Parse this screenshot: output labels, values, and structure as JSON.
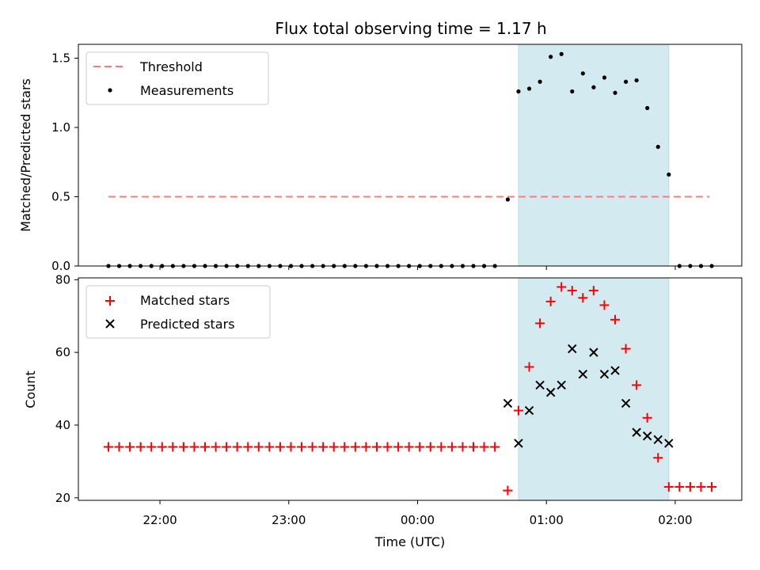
{
  "chart_data": [
    {
      "type": "scatter",
      "title": "Flux total observing time = 1.17 h",
      "xlabel": "",
      "ylabel": "Matched/Predicted stars",
      "ylim": [
        0,
        1.6
      ],
      "yticks": [
        "0.0",
        "0.5",
        "1.0",
        "1.5"
      ],
      "xlim": [
        "21:22",
        "02:31"
      ],
      "legend_position": "top-left",
      "highlight_span": {
        "start": "00:47",
        "end": "01:57",
        "color": "#d3ebf0"
      },
      "threshold": {
        "name": "Threshold",
        "value": 0.5,
        "x_start": "21:36",
        "x_end": "02:16",
        "color": "#f08080"
      },
      "series": [
        {
          "name": "Measurements",
          "marker": "dot",
          "color": "#000000",
          "x": [
            "21:36",
            "21:41",
            "21:46",
            "21:51",
            "21:56",
            "22:01",
            "22:06",
            "22:11",
            "22:16",
            "22:21",
            "22:26",
            "22:31",
            "22:36",
            "22:41",
            "22:46",
            "22:51",
            "22:56",
            "23:01",
            "23:06",
            "23:11",
            "23:16",
            "23:21",
            "23:26",
            "23:31",
            "23:36",
            "23:41",
            "23:46",
            "23:51",
            "23:56",
            "00:01",
            "00:06",
            "00:11",
            "00:16",
            "00:21",
            "00:26",
            "00:31",
            "00:36",
            "00:42",
            "00:47",
            "00:52",
            "00:57",
            "01:02",
            "01:07",
            "01:12",
            "01:17",
            "01:22",
            "01:27",
            "01:32",
            "01:37",
            "01:42",
            "01:47",
            "01:52",
            "01:57",
            "02:02",
            "02:07",
            "02:12",
            "02:17"
          ],
          "y": [
            0,
            0,
            0,
            0,
            0,
            0,
            0,
            0,
            0,
            0,
            0,
            0,
            0,
            0,
            0,
            0,
            0,
            0,
            0,
            0,
            0,
            0,
            0,
            0,
            0,
            0,
            0,
            0,
            0,
            0,
            0,
            0,
            0,
            0,
            0,
            0,
            0,
            0.48,
            1.26,
            1.28,
            1.33,
            1.51,
            1.53,
            1.26,
            1.39,
            1.29,
            1.36,
            1.25,
            1.33,
            1.34,
            1.14,
            0.86,
            0.66,
            0,
            0,
            0,
            0
          ]
        }
      ]
    },
    {
      "type": "scatter",
      "title": "",
      "xlabel": "Time (UTC)",
      "ylabel": "Count",
      "ylim": [
        19.3,
        80.5
      ],
      "yticks": [
        "20",
        "40",
        "60",
        "80"
      ],
      "xlim": [
        "21:22",
        "02:31"
      ],
      "xticks": [
        "22:00",
        "23:00",
        "00:00",
        "01:00",
        "02:00"
      ],
      "legend_position": "top-left",
      "highlight_span": {
        "start": "00:47",
        "end": "01:57",
        "color": "#d3ebf0"
      },
      "series": [
        {
          "name": "Matched stars",
          "marker": "plus",
          "color": "#ff0000",
          "x": [
            "21:36",
            "21:41",
            "21:46",
            "21:51",
            "21:56",
            "22:01",
            "22:06",
            "22:11",
            "22:16",
            "22:21",
            "22:26",
            "22:31",
            "22:36",
            "22:41",
            "22:46",
            "22:51",
            "22:56",
            "23:01",
            "23:06",
            "23:11",
            "23:16",
            "23:21",
            "23:26",
            "23:31",
            "23:36",
            "23:41",
            "23:46",
            "23:51",
            "23:56",
            "00:01",
            "00:06",
            "00:11",
            "00:16",
            "00:21",
            "00:26",
            "00:31",
            "00:36",
            "00:42",
            "00:47",
            "00:52",
            "00:57",
            "01:02",
            "01:07",
            "01:12",
            "01:17",
            "01:22",
            "01:27",
            "01:32",
            "01:37",
            "01:42",
            "01:47",
            "01:52",
            "01:57",
            "02:02",
            "02:07",
            "02:12",
            "02:17"
          ],
          "y": [
            34,
            34,
            34,
            34,
            34,
            34,
            34,
            34,
            34,
            34,
            34,
            34,
            34,
            34,
            34,
            34,
            34,
            34,
            34,
            34,
            34,
            34,
            34,
            34,
            34,
            34,
            34,
            34,
            34,
            34,
            34,
            34,
            34,
            34,
            34,
            34,
            34,
            22,
            44,
            56,
            68,
            74,
            78,
            77,
            75,
            77,
            73,
            69,
            61,
            51,
            42,
            31,
            23,
            23,
            23,
            23,
            23
          ]
        },
        {
          "name": "Predicted stars",
          "marker": "cross",
          "color": "#000000",
          "x": [
            "00:42",
            "00:47",
            "00:52",
            "00:57",
            "01:02",
            "01:07",
            "01:12",
            "01:17",
            "01:22",
            "01:27",
            "01:32",
            "01:37",
            "01:42",
            "01:47",
            "01:52",
            "01:57"
          ],
          "y": [
            46,
            35,
            44,
            51,
            49,
            51,
            61,
            54,
            60,
            54,
            55,
            46,
            38,
            37,
            36,
            35
          ]
        }
      ]
    }
  ]
}
